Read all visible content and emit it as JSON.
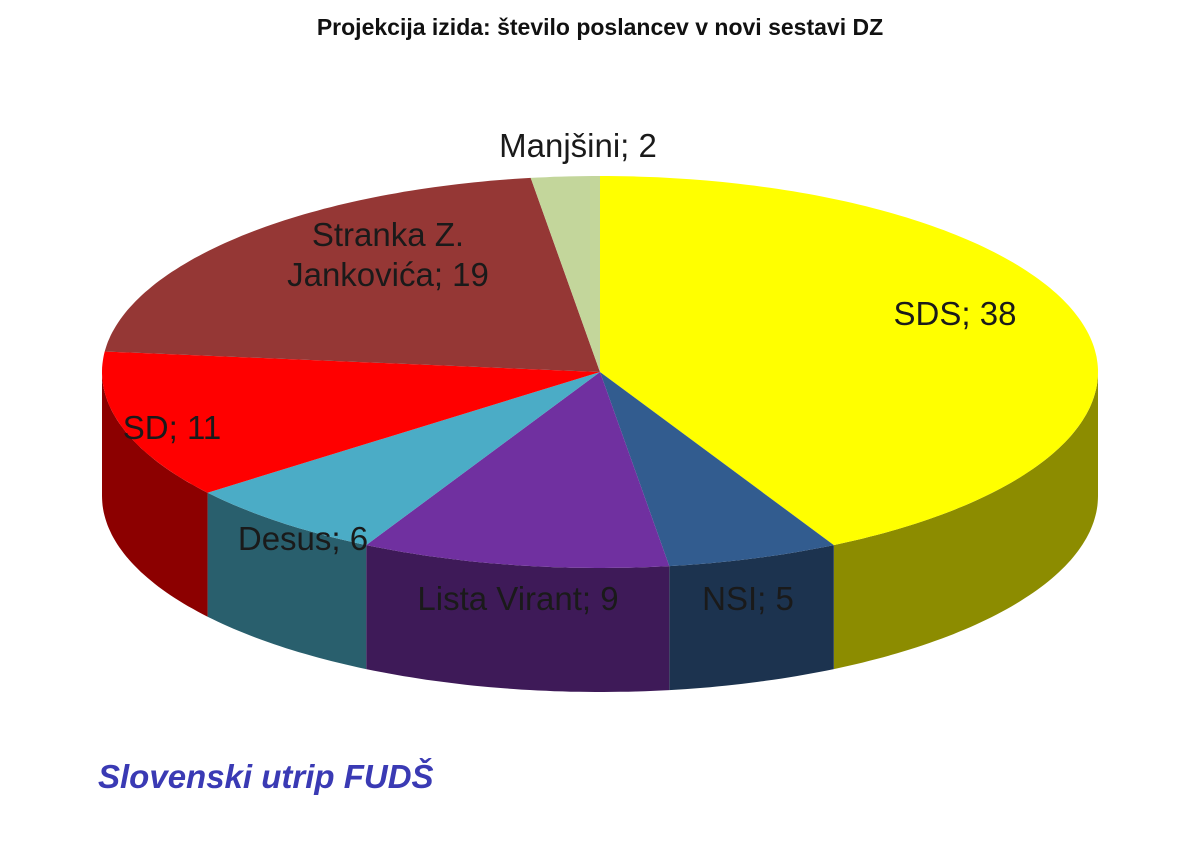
{
  "chart_data": {
    "type": "pie",
    "title": "Projekcija izida: število poslancev v novi sestavi DZ",
    "slices": [
      {
        "name": "SDS",
        "value": 38,
        "color": "#ffff00",
        "label": [
          "SDS; 38"
        ]
      },
      {
        "name": "NSI",
        "value": 5,
        "color": "#325c8f",
        "label": [
          "NSI; 5"
        ]
      },
      {
        "name": "Lista Virant",
        "value": 9,
        "color": "#7030a0",
        "label": [
          "Lista Virant; 9"
        ]
      },
      {
        "name": "Desus",
        "value": 6,
        "color": "#4bacc6",
        "label": [
          "Desus; 6"
        ]
      },
      {
        "name": "SD",
        "value": 11,
        "color": "#ff0000",
        "label": [
          "SD; 11"
        ]
      },
      {
        "name": "Stranka Z. Jankovića",
        "value": 19,
        "color": "#953735",
        "label": [
          "Stranka Z.",
          "Jankovića; 19"
        ]
      },
      {
        "name": "Manjšini",
        "value": 2,
        "color": "#c3d69b",
        "label": [
          "Manjšini; 2"
        ]
      }
    ]
  },
  "watermark": "Slovenski utrip FUDŠ"
}
